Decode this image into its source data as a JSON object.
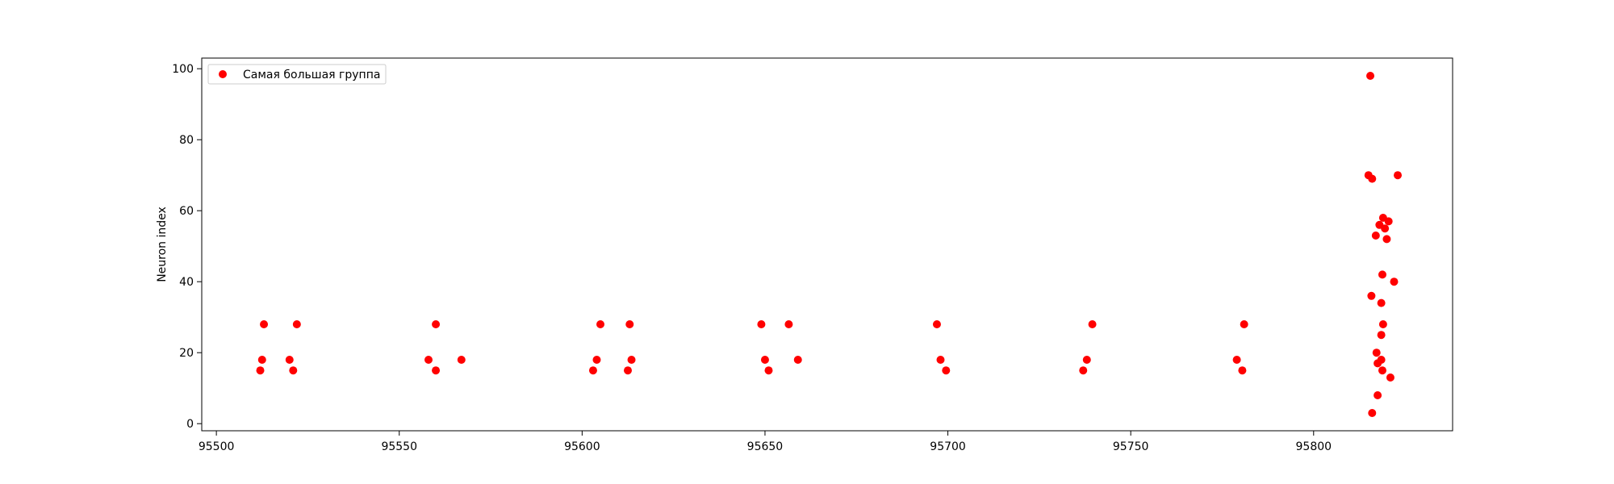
{
  "chart_data": {
    "type": "scatter",
    "title": "",
    "xlabel": "",
    "ylabel": "Neuron index",
    "xlim": [
      95496,
      95838
    ],
    "ylim": [
      -2,
      103
    ],
    "xticks": [
      95500,
      95550,
      95600,
      95650,
      95700,
      95750,
      95800
    ],
    "yticks": [
      0,
      20,
      40,
      60,
      80,
      100
    ],
    "grid": false,
    "legend": {
      "position": "top-left"
    },
    "series": [
      {
        "name": "Самая большая группа",
        "color": "#ff0000",
        "marker": "circle",
        "points": [
          [
            95512,
            15
          ],
          [
            95512.5,
            18
          ],
          [
            95513,
            28
          ],
          [
            95520,
            18
          ],
          [
            95521,
            15
          ],
          [
            95522,
            28
          ],
          [
            95558,
            18
          ],
          [
            95560,
            28
          ],
          [
            95560,
            15
          ],
          [
            95567,
            18
          ],
          [
            95603,
            15
          ],
          [
            95604,
            18
          ],
          [
            95605,
            28
          ],
          [
            95612.5,
            15
          ],
          [
            95613,
            28
          ],
          [
            95613.5,
            18
          ],
          [
            95649,
            28
          ],
          [
            95650,
            18
          ],
          [
            95651,
            15
          ],
          [
            95656.5,
            28
          ],
          [
            95659,
            18
          ],
          [
            95697,
            28
          ],
          [
            95698,
            18
          ],
          [
            95699.5,
            15
          ],
          [
            95737,
            15
          ],
          [
            95738,
            18
          ],
          [
            95739.5,
            28
          ],
          [
            95779,
            18
          ],
          [
            95780.5,
            15
          ],
          [
            95781,
            28
          ],
          [
            95815.5,
            98
          ],
          [
            95815,
            70
          ],
          [
            95816,
            69
          ],
          [
            95815.8,
            36
          ],
          [
            95816,
            3
          ],
          [
            95817,
            53
          ],
          [
            95817.2,
            20
          ],
          [
            95817.5,
            17
          ],
          [
            95817.5,
            8
          ],
          [
            95818,
            56
          ],
          [
            95818.5,
            25
          ],
          [
            95818.5,
            34
          ],
          [
            95818.8,
            42
          ],
          [
            95819,
            58
          ],
          [
            95819,
            28
          ],
          [
            95818.5,
            18
          ],
          [
            95818.8,
            15
          ],
          [
            95819.5,
            55
          ],
          [
            95820,
            52
          ],
          [
            95820.5,
            57
          ],
          [
            95821,
            13
          ],
          [
            95822,
            40
          ],
          [
            95823,
            70
          ]
        ]
      }
    ]
  }
}
